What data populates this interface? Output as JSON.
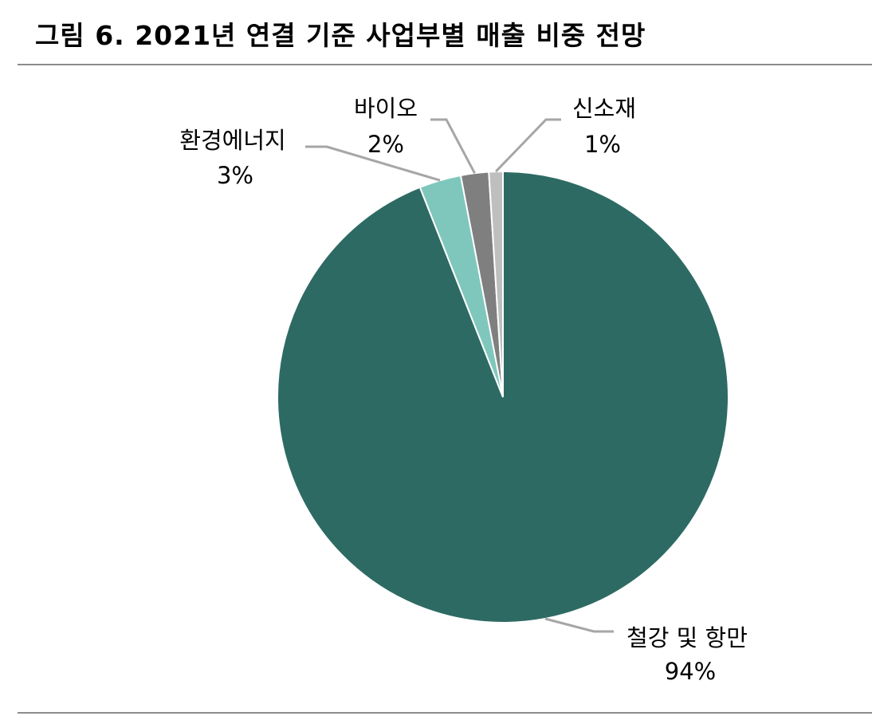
{
  "title": "그림 6. 2021년 연결 기준 사업부별 매출 비중 전망",
  "chart_data": {
    "type": "pie",
    "categories": [
      "철강 및 항만",
      "환경에너지",
      "바이오",
      "신소재"
    ],
    "values": [
      94,
      3,
      2,
      1
    ],
    "labels": [
      "94%",
      "3%",
      "2%",
      "1%"
    ],
    "colors": [
      "#2d6a63",
      "#7fc7bc",
      "#7f7f7f",
      "#bfbfbf"
    ],
    "leader_color": "#a6a6a6",
    "start_angle_deg": 0,
    "direction": "clockwise"
  }
}
